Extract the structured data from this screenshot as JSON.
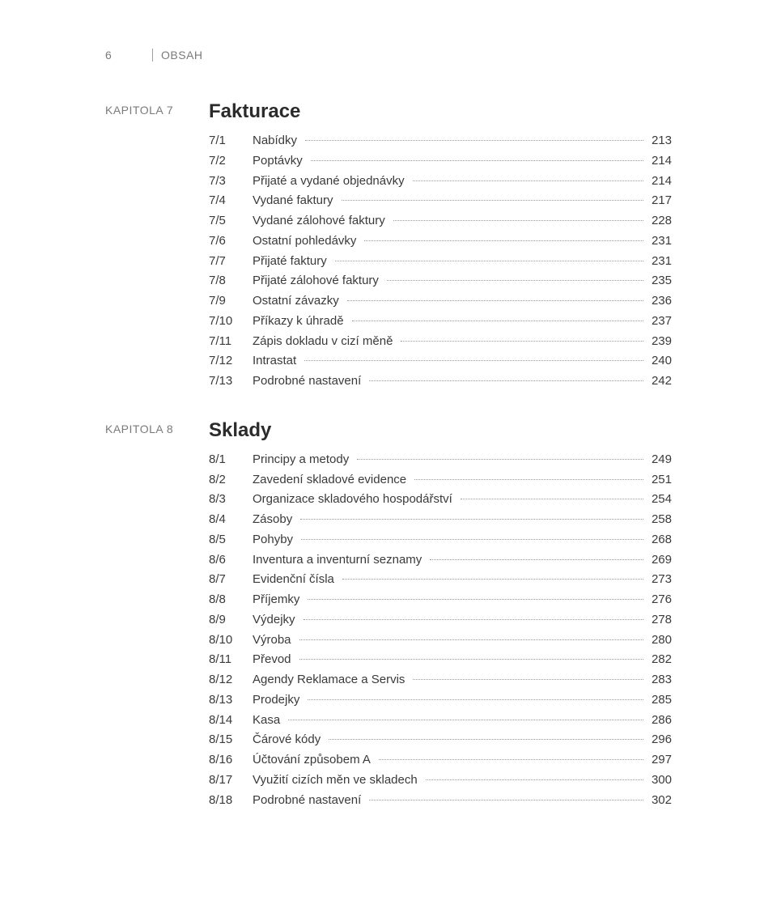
{
  "header": {
    "page_number": "6",
    "title": "OBSAH"
  },
  "chapters": [
    {
      "label": "KAPITOLA 7",
      "title": "Fakturace",
      "entries": [
        {
          "sec": "7/1",
          "title": "Nabídky",
          "page": "213"
        },
        {
          "sec": "7/2",
          "title": "Poptávky",
          "page": "214"
        },
        {
          "sec": "7/3",
          "title": "Přijaté a vydané objednávky",
          "page": "214"
        },
        {
          "sec": "7/4",
          "title": "Vydané faktury",
          "page": "217"
        },
        {
          "sec": "7/5",
          "title": "Vydané zálohové faktury",
          "page": "228"
        },
        {
          "sec": "7/6",
          "title": "Ostatní pohledávky",
          "page": "231"
        },
        {
          "sec": "7/7",
          "title": "Přijaté faktury",
          "page": "231"
        },
        {
          "sec": "7/8",
          "title": "Přijaté zálohové faktury",
          "page": "235"
        },
        {
          "sec": "7/9",
          "title": "Ostatní závazky",
          "page": "236"
        },
        {
          "sec": "7/10",
          "title": "Příkazy k úhradě",
          "page": "237"
        },
        {
          "sec": "7/11",
          "title": "Zápis dokladu v cizí měně",
          "page": "239"
        },
        {
          "sec": "7/12",
          "title": "Intrastat",
          "page": "240"
        },
        {
          "sec": "7/13",
          "title": "Podrobné nastavení",
          "page": "242"
        }
      ]
    },
    {
      "label": "KAPITOLA 8",
      "title": "Sklady",
      "entries": [
        {
          "sec": "8/1",
          "title": "Principy a metody",
          "page": "249"
        },
        {
          "sec": "8/2",
          "title": "Zavedení skladové evidence",
          "page": "251"
        },
        {
          "sec": "8/3",
          "title": "Organizace skladového hospodářství",
          "page": "254"
        },
        {
          "sec": "8/4",
          "title": "Zásoby",
          "page": "258"
        },
        {
          "sec": "8/5",
          "title": "Pohyby",
          "page": "268"
        },
        {
          "sec": "8/6",
          "title": "Inventura a inventurní seznamy",
          "page": "269"
        },
        {
          "sec": "8/7",
          "title": "Evidenční čísla",
          "page": "273"
        },
        {
          "sec": "8/8",
          "title": "Příjemky",
          "page": "276"
        },
        {
          "sec": "8/9",
          "title": "Výdejky",
          "page": "278"
        },
        {
          "sec": "8/10",
          "title": "Výroba",
          "page": "280"
        },
        {
          "sec": "8/11",
          "title": "Převod",
          "page": "282"
        },
        {
          "sec": "8/12",
          "title": "Agendy Reklamace a Servis",
          "page": "283"
        },
        {
          "sec": "8/13",
          "title": "Prodejky",
          "page": "285"
        },
        {
          "sec": "8/14",
          "title": "Kasa",
          "page": "286"
        },
        {
          "sec": "8/15",
          "title": "Čárové kódy",
          "page": "296"
        },
        {
          "sec": "8/16",
          "title": "Účtování způsobem A",
          "page": "297"
        },
        {
          "sec": "8/17",
          "title": "Využití cizích měn ve skladech",
          "page": "300"
        },
        {
          "sec": "8/18",
          "title": "Podrobné nastavení",
          "page": "302"
        }
      ]
    }
  ],
  "style": {
    "text_color": "#3a3a3a",
    "muted_color": "#7a7a7a",
    "dot_color": "#9a9a9a",
    "background": "#ffffff",
    "body_fontsize": 15,
    "title_fontsize": 24
  }
}
